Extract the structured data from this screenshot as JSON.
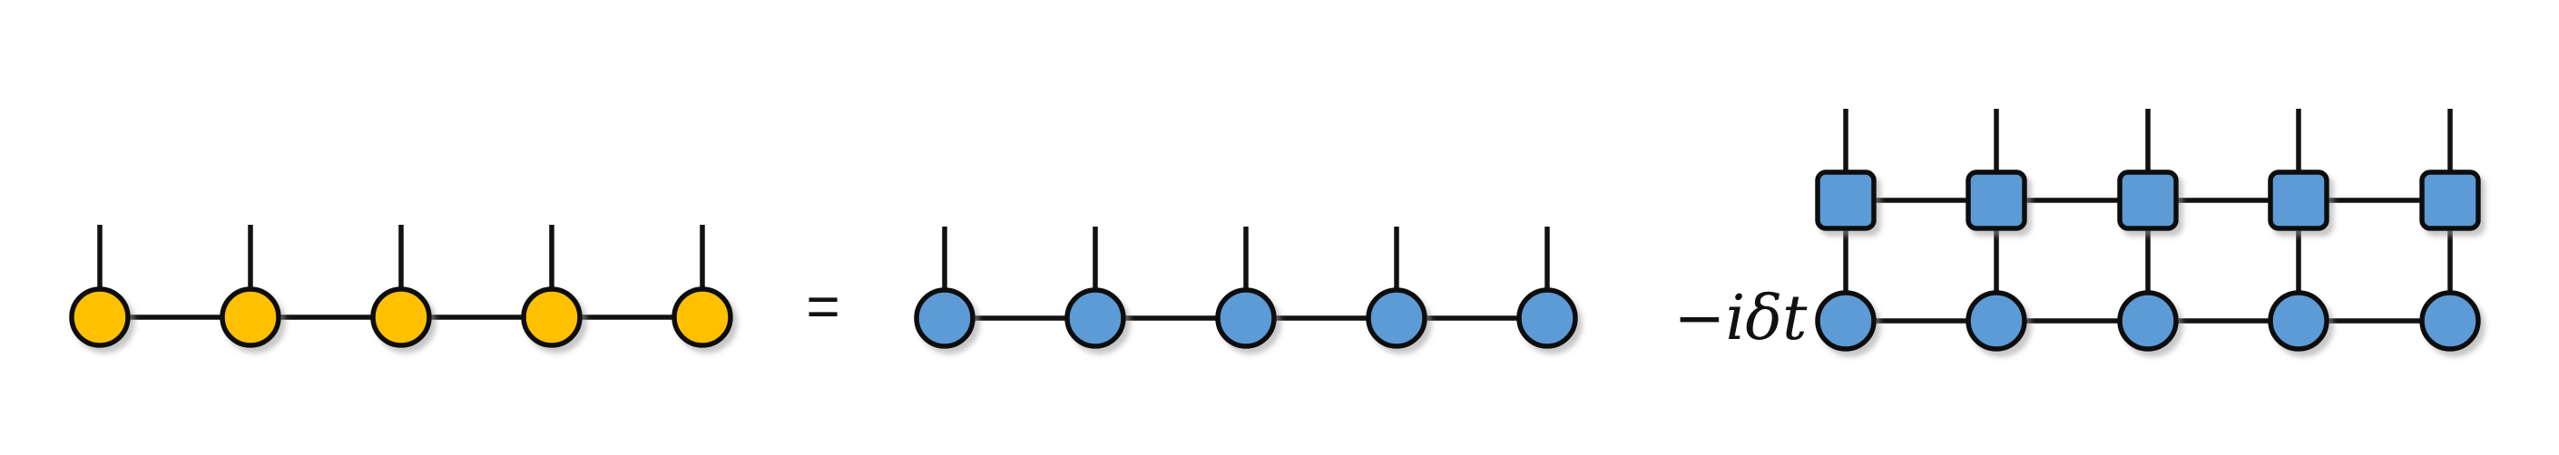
{
  "diagram": {
    "equals_sign": "=",
    "operator_label": "−iδt",
    "colors": {
      "yellow_node": "#FFC000",
      "blue_node": "#5B9BD5",
      "line": "#111111",
      "shadow": "#BFBFBF"
    },
    "left_chain": {
      "node_shape": "circle",
      "node_color_name": "yellow",
      "node_count": 5
    },
    "right_chain_first": {
      "node_shape": "circle",
      "node_color_name": "blue",
      "node_count": 5
    },
    "right_chain_second": {
      "upper_row": {
        "node_shape": "rounded-square",
        "node_color_name": "blue",
        "node_count": 5
      },
      "lower_row": {
        "node_shape": "circle",
        "node_color_name": "blue",
        "node_count": 5
      }
    }
  }
}
